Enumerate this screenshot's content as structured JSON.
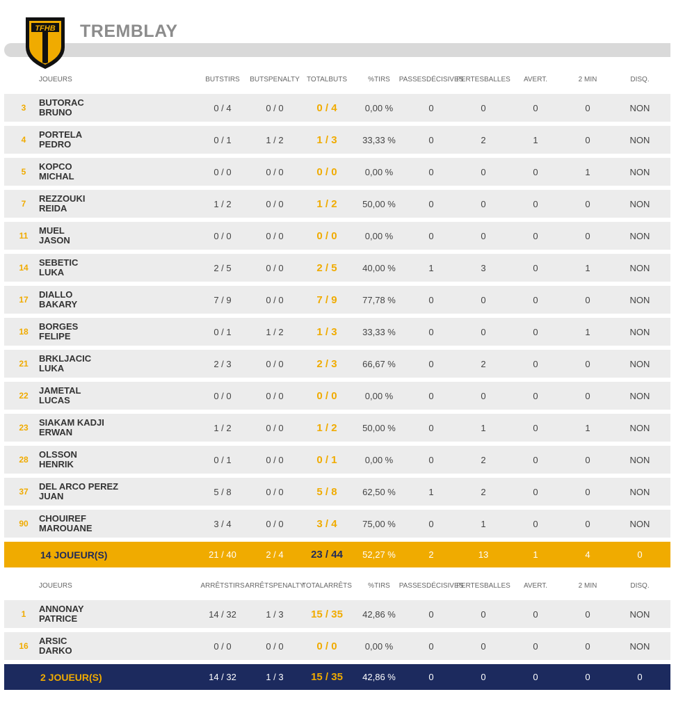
{
  "team": {
    "name": "TREMBLAY",
    "logo_text": "TFHB",
    "colors": {
      "gold": "#f0ab00",
      "navy": "#1c2a5e",
      "black": "#111111"
    }
  },
  "field_players": {
    "headers": {
      "player": "JOUEURS",
      "c1": [
        "BUTS",
        "TIRS"
      ],
      "c2": [
        "BUTS",
        "PENALTY"
      ],
      "c3": [
        "TOTAL",
        "BUTS"
      ],
      "c4": [
        "%",
        "TIRS"
      ],
      "c5": [
        "PASSES",
        "DÉCISIVES"
      ],
      "c6": [
        "PERTES",
        "BALLES"
      ],
      "c7": [
        "AVERT."
      ],
      "c8": [
        "2 MIN"
      ],
      "c9": [
        "DISQ."
      ]
    },
    "rows": [
      {
        "num": "3",
        "last": "BUTORAC",
        "first": "BRUNO",
        "c1": "0 / 4",
        "c2": "0 / 0",
        "c3": "0 / 4",
        "c4": "0,00 %",
        "c5": "0",
        "c6": "0",
        "c7": "0",
        "c8": "0",
        "c9": "NON"
      },
      {
        "num": "4",
        "last": "PORTELA",
        "first": "PEDRO",
        "c1": "0 / 1",
        "c2": "1 / 2",
        "c3": "1 / 3",
        "c4": "33,33 %",
        "c5": "0",
        "c6": "2",
        "c7": "1",
        "c8": "0",
        "c9": "NON"
      },
      {
        "num": "5",
        "last": "KOPCO",
        "first": "MICHAL",
        "c1": "0 / 0",
        "c2": "0 / 0",
        "c3": "0 / 0",
        "c4": "0,00 %",
        "c5": "0",
        "c6": "0",
        "c7": "0",
        "c8": "1",
        "c9": "NON"
      },
      {
        "num": "7",
        "last": "REZZOUKI",
        "first": "REIDA",
        "c1": "1 / 2",
        "c2": "0 / 0",
        "c3": "1 / 2",
        "c4": "50,00 %",
        "c5": "0",
        "c6": "0",
        "c7": "0",
        "c8": "0",
        "c9": "NON"
      },
      {
        "num": "11",
        "last": "MUEL",
        "first": "JASON",
        "c1": "0 / 0",
        "c2": "0 / 0",
        "c3": "0 / 0",
        "c4": "0,00 %",
        "c5": "0",
        "c6": "0",
        "c7": "0",
        "c8": "0",
        "c9": "NON"
      },
      {
        "num": "14",
        "last": "SEBETIC",
        "first": "LUKA",
        "c1": "2 / 5",
        "c2": "0 / 0",
        "c3": "2 / 5",
        "c4": "40,00 %",
        "c5": "1",
        "c6": "3",
        "c7": "0",
        "c8": "1",
        "c9": "NON"
      },
      {
        "num": "17",
        "last": "DIALLO",
        "first": "BAKARY",
        "c1": "7 / 9",
        "c2": "0 / 0",
        "c3": "7 / 9",
        "c4": "77,78 %",
        "c5": "0",
        "c6": "0",
        "c7": "0",
        "c8": "0",
        "c9": "NON"
      },
      {
        "num": "18",
        "last": "BORGES",
        "first": "FELIPE",
        "c1": "0 / 1",
        "c2": "1 / 2",
        "c3": "1 / 3",
        "c4": "33,33 %",
        "c5": "0",
        "c6": "0",
        "c7": "0",
        "c8": "1",
        "c9": "NON"
      },
      {
        "num": "21",
        "last": "BRKLJACIC",
        "first": "LUKA",
        "c1": "2 / 3",
        "c2": "0 / 0",
        "c3": "2 / 3",
        "c4": "66,67 %",
        "c5": "0",
        "c6": "2",
        "c7": "0",
        "c8": "0",
        "c9": "NON"
      },
      {
        "num": "22",
        "last": "JAMETAL",
        "first": "LUCAS",
        "c1": "0 / 0",
        "c2": "0 / 0",
        "c3": "0 / 0",
        "c4": "0,00 %",
        "c5": "0",
        "c6": "0",
        "c7": "0",
        "c8": "0",
        "c9": "NON"
      },
      {
        "num": "23",
        "last": "SIAKAM KADJI",
        "first": "ERWAN",
        "c1": "1 / 2",
        "c2": "0 / 0",
        "c3": "1 / 2",
        "c4": "50,00 %",
        "c5": "0",
        "c6": "1",
        "c7": "0",
        "c8": "1",
        "c9": "NON"
      },
      {
        "num": "28",
        "last": "OLSSON",
        "first": "HENRIK",
        "c1": "0 / 1",
        "c2": "0 / 0",
        "c3": "0 / 1",
        "c4": "0,00 %",
        "c5": "0",
        "c6": "2",
        "c7": "0",
        "c8": "0",
        "c9": "NON"
      },
      {
        "num": "37",
        "last": "DEL ARCO PEREZ",
        "first": "JUAN",
        "c1": "5 / 8",
        "c2": "0 / 0",
        "c3": "5 / 8",
        "c4": "62,50 %",
        "c5": "1",
        "c6": "2",
        "c7": "0",
        "c8": "0",
        "c9": "NON"
      },
      {
        "num": "90",
        "last": "CHOUIREF",
        "first": "MAROUANE",
        "c1": "3 / 4",
        "c2": "0 / 0",
        "c3": "3 / 4",
        "c4": "75,00 %",
        "c5": "0",
        "c6": "1",
        "c7": "0",
        "c8": "0",
        "c9": "NON"
      }
    ],
    "summary": {
      "label": "14 JOUEUR(S)",
      "c1": "21 / 40",
      "c2": "2 / 4",
      "c3": "23 / 44",
      "c4": "52,27 %",
      "c5": "2",
      "c6": "13",
      "c7": "1",
      "c8": "4",
      "c9": "0"
    }
  },
  "goalkeepers": {
    "headers": {
      "player": "JOUEURS",
      "c1": [
        "ARRÊTS",
        "TIRS"
      ],
      "c2": [
        "ARRÊTS",
        "PENALTY"
      ],
      "c3": [
        "TOTAL",
        "ARRÊTS"
      ],
      "c4": [
        "%",
        "TIRS"
      ],
      "c5": [
        "PASSES",
        "DÉCISIVES"
      ],
      "c6": [
        "PERTES",
        "BALLES"
      ],
      "c7": [
        "AVERT."
      ],
      "c8": [
        "2 MIN"
      ],
      "c9": [
        "DISQ."
      ]
    },
    "rows": [
      {
        "num": "1",
        "last": "ANNONAY",
        "first": "PATRICE",
        "c1": "14 / 32",
        "c2": "1 / 3",
        "c3": "15 / 35",
        "c4": "42,86 %",
        "c5": "0",
        "c6": "0",
        "c7": "0",
        "c8": "0",
        "c9": "NON"
      },
      {
        "num": "16",
        "last": "ARSIC",
        "first": "DARKO",
        "c1": "0 / 0",
        "c2": "0 / 0",
        "c3": "0 / 0",
        "c4": "0,00 %",
        "c5": "0",
        "c6": "0",
        "c7": "0",
        "c8": "0",
        "c9": "NON"
      }
    ],
    "summary": {
      "label": "2 JOUEUR(S)",
      "c1": "14 / 32",
      "c2": "1 / 3",
      "c3": "15 / 35",
      "c4": "42,86 %",
      "c5": "0",
      "c6": "0",
      "c7": "0",
      "c8": "0",
      "c9": "0"
    }
  }
}
